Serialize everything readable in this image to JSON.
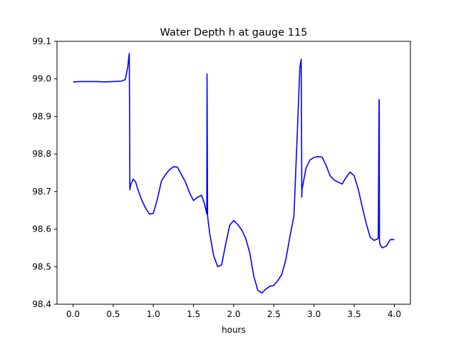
{
  "chart_data": {
    "type": "line",
    "title": "Water Depth h at gauge 115",
    "xlabel": "hours",
    "ylabel": "",
    "xlim": [
      -0.2,
      4.2
    ],
    "ylim": [
      98.4,
      99.1
    ],
    "xticks": [
      0.0,
      0.5,
      1.0,
      1.5,
      2.0,
      2.5,
      3.0,
      3.5,
      4.0
    ],
    "xtick_labels": [
      "0.0",
      "0.5",
      "1.0",
      "1.5",
      "2.0",
      "2.5",
      "3.0",
      "3.5",
      "4.0"
    ],
    "yticks": [
      98.4,
      98.5,
      98.6,
      98.7,
      98.8,
      98.9,
      99.0,
      99.1
    ],
    "ytick_labels": [
      "98.4",
      "98.5",
      "98.6",
      "98.7",
      "98.8",
      "98.9",
      "99.0",
      "99.1"
    ],
    "grid": false,
    "series": [
      {
        "color": "#0000ff",
        "x": [
          0.0,
          0.1,
          0.2,
          0.3,
          0.4,
          0.5,
          0.6,
          0.65,
          0.68,
          0.7,
          0.705,
          0.707,
          0.72,
          0.75,
          0.78,
          0.8,
          0.85,
          0.9,
          0.95,
          1.0,
          1.05,
          1.1,
          1.15,
          1.2,
          1.25,
          1.3,
          1.35,
          1.4,
          1.45,
          1.5,
          1.55,
          1.6,
          1.64,
          1.665,
          1.668,
          1.672,
          1.675,
          1.7,
          1.75,
          1.8,
          1.85,
          1.9,
          1.95,
          2.0,
          2.05,
          2.1,
          2.15,
          2.2,
          2.25,
          2.3,
          2.35,
          2.4,
          2.45,
          2.5,
          2.55,
          2.6,
          2.65,
          2.7,
          2.75,
          2.8,
          2.82,
          2.823,
          2.84,
          2.845,
          2.848,
          2.85,
          2.9,
          2.95,
          3.0,
          3.05,
          3.1,
          3.15,
          3.2,
          3.25,
          3.3,
          3.35,
          3.4,
          3.45,
          3.5,
          3.55,
          3.6,
          3.65,
          3.7,
          3.75,
          3.8,
          3.81,
          3.812,
          3.815,
          3.82,
          3.85,
          3.9,
          3.95,
          4.0
        ],
        "y": [
          98.992,
          98.993,
          98.993,
          98.993,
          98.992,
          98.993,
          98.994,
          98.998,
          99.03,
          99.068,
          98.85,
          98.705,
          98.72,
          98.733,
          98.725,
          98.71,
          98.68,
          98.657,
          98.64,
          98.642,
          98.68,
          98.728,
          98.745,
          98.758,
          98.766,
          98.765,
          98.745,
          98.725,
          98.697,
          98.676,
          98.685,
          98.69,
          98.665,
          98.64,
          99.013,
          98.8,
          98.635,
          98.59,
          98.53,
          98.5,
          98.505,
          98.56,
          98.61,
          98.623,
          98.612,
          98.598,
          98.575,
          98.537,
          98.475,
          98.437,
          98.43,
          98.44,
          98.448,
          98.45,
          98.463,
          98.48,
          98.52,
          98.58,
          98.635,
          98.9,
          99.01,
          99.03,
          99.052,
          98.85,
          98.685,
          98.705,
          98.762,
          98.784,
          98.791,
          98.793,
          98.792,
          98.77,
          98.742,
          98.731,
          98.725,
          98.72,
          98.738,
          98.752,
          98.742,
          98.707,
          98.66,
          98.615,
          98.578,
          98.57,
          98.575,
          98.945,
          98.94,
          98.57,
          98.56,
          98.55,
          98.555,
          98.572,
          98.572
        ]
      }
    ]
  }
}
